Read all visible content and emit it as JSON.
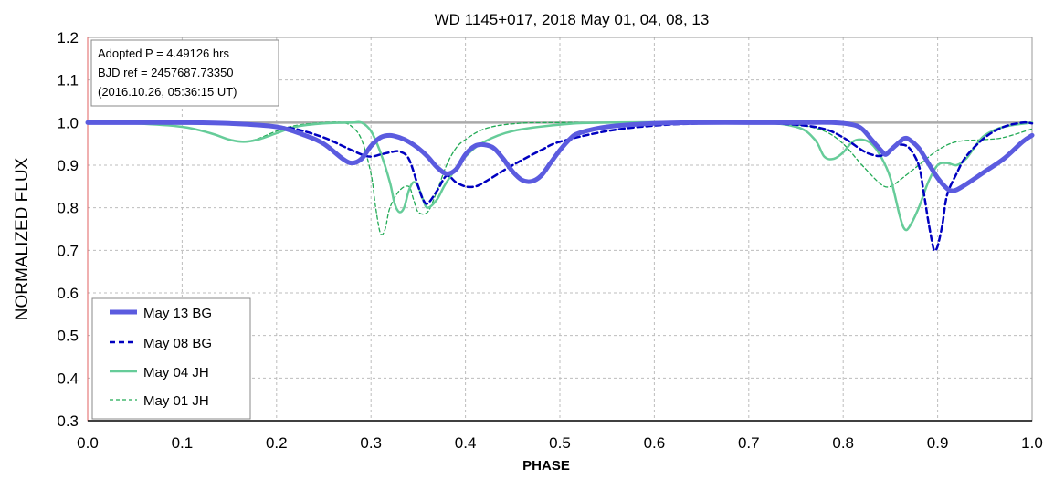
{
  "chart_data": {
    "type": "line",
    "title": "WD 1145+017, 2018 May 01, 04, 08, 13",
    "xlabel": "PHASE",
    "ylabel": "NORMALIZED FLUX",
    "xlim": [
      0.0,
      1.0
    ],
    "ylim": [
      0.3,
      1.2
    ],
    "x_ticks": [
      "0.0",
      "0.1",
      "0.2",
      "0.3",
      "0.4",
      "0.5",
      "0.6",
      "0.7",
      "0.8",
      "0.9",
      "1.0"
    ],
    "y_ticks": [
      "0.3",
      "0.4",
      "0.5",
      "0.6",
      "0.7",
      "0.8",
      "0.9",
      "1.0",
      "1.1",
      "1.2"
    ],
    "grid": true,
    "reference_line": 1.0,
    "legend_position": "bottom-left",
    "annotation": {
      "line1": "Adopted P = 4.49126 hrs",
      "line2": "BJD ref = 2457687.73350",
      "line3": "(2016.10.26, 05:36:15 UT)"
    },
    "series": [
      {
        "name": "May 13 BG",
        "color": "#5b5bdf",
        "style": "solid-thick",
        "points": [
          [
            0.0,
            1.0
          ],
          [
            0.05,
            1.0
          ],
          [
            0.1,
            1.0
          ],
          [
            0.15,
            0.998
          ],
          [
            0.2,
            0.99
          ],
          [
            0.23,
            0.97
          ],
          [
            0.25,
            0.95
          ],
          [
            0.27,
            0.915
          ],
          [
            0.28,
            0.905
          ],
          [
            0.29,
            0.915
          ],
          [
            0.3,
            0.945
          ],
          [
            0.31,
            0.965
          ],
          [
            0.32,
            0.97
          ],
          [
            0.33,
            0.965
          ],
          [
            0.34,
            0.955
          ],
          [
            0.35,
            0.94
          ],
          [
            0.36,
            0.92
          ],
          [
            0.37,
            0.895
          ],
          [
            0.38,
            0.88
          ],
          [
            0.39,
            0.89
          ],
          [
            0.4,
            0.925
          ],
          [
            0.41,
            0.945
          ],
          [
            0.42,
            0.948
          ],
          [
            0.43,
            0.94
          ],
          [
            0.44,
            0.915
          ],
          [
            0.45,
            0.885
          ],
          [
            0.46,
            0.865
          ],
          [
            0.47,
            0.862
          ],
          [
            0.48,
            0.875
          ],
          [
            0.49,
            0.905
          ],
          [
            0.5,
            0.935
          ],
          [
            0.51,
            0.96
          ],
          [
            0.52,
            0.975
          ],
          [
            0.55,
            0.99
          ],
          [
            0.6,
            0.998
          ],
          [
            0.65,
            1.0
          ],
          [
            0.7,
            1.0
          ],
          [
            0.75,
            1.0
          ],
          [
            0.79,
            1.0
          ],
          [
            0.81,
            0.995
          ],
          [
            0.82,
            0.985
          ],
          [
            0.83,
            0.96
          ],
          [
            0.84,
            0.935
          ],
          [
            0.845,
            0.925
          ],
          [
            0.85,
            0.935
          ],
          [
            0.86,
            0.955
          ],
          [
            0.865,
            0.963
          ],
          [
            0.87,
            0.96
          ],
          [
            0.88,
            0.94
          ],
          [
            0.89,
            0.905
          ],
          [
            0.9,
            0.87
          ],
          [
            0.91,
            0.845
          ],
          [
            0.915,
            0.84
          ],
          [
            0.92,
            0.842
          ],
          [
            0.93,
            0.855
          ],
          [
            0.95,
            0.885
          ],
          [
            0.97,
            0.915
          ],
          [
            0.99,
            0.955
          ],
          [
            1.0,
            0.97
          ]
        ]
      },
      {
        "name": "May 08 BG",
        "color": "#0000c0",
        "style": "dashed",
        "points": [
          [
            0.0,
            1.0
          ],
          [
            0.1,
            1.0
          ],
          [
            0.15,
            0.998
          ],
          [
            0.2,
            0.99
          ],
          [
            0.22,
            0.985
          ],
          [
            0.25,
            0.965
          ],
          [
            0.27,
            0.945
          ],
          [
            0.29,
            0.925
          ],
          [
            0.3,
            0.92
          ],
          [
            0.31,
            0.925
          ],
          [
            0.32,
            0.93
          ],
          [
            0.33,
            0.932
          ],
          [
            0.34,
            0.915
          ],
          [
            0.35,
            0.85
          ],
          [
            0.355,
            0.82
          ],
          [
            0.36,
            0.81
          ],
          [
            0.37,
            0.84
          ],
          [
            0.38,
            0.875
          ],
          [
            0.39,
            0.86
          ],
          [
            0.4,
            0.85
          ],
          [
            0.41,
            0.85
          ],
          [
            0.42,
            0.86
          ],
          [
            0.45,
            0.9
          ],
          [
            0.48,
            0.935
          ],
          [
            0.5,
            0.955
          ],
          [
            0.55,
            0.98
          ],
          [
            0.6,
            0.993
          ],
          [
            0.65,
            0.998
          ],
          [
            0.7,
            1.0
          ],
          [
            0.75,
            0.995
          ],
          [
            0.78,
            0.985
          ],
          [
            0.8,
            0.965
          ],
          [
            0.82,
            0.935
          ],
          [
            0.83,
            0.925
          ],
          [
            0.84,
            0.922
          ],
          [
            0.85,
            0.935
          ],
          [
            0.86,
            0.948
          ],
          [
            0.87,
            0.94
          ],
          [
            0.88,
            0.9
          ],
          [
            0.885,
            0.84
          ],
          [
            0.89,
            0.77
          ],
          [
            0.895,
            0.71
          ],
          [
            0.897,
            0.7
          ],
          [
            0.9,
            0.71
          ],
          [
            0.905,
            0.76
          ],
          [
            0.91,
            0.83
          ],
          [
            0.92,
            0.88
          ],
          [
            0.93,
            0.92
          ],
          [
            0.95,
            0.965
          ],
          [
            0.97,
            0.99
          ],
          [
            0.99,
            1.0
          ],
          [
            1.0,
            0.998
          ]
        ]
      },
      {
        "name": "May 04 JH",
        "color": "#66cc99",
        "style": "solid",
        "points": [
          [
            0.0,
            1.0
          ],
          [
            0.05,
            0.998
          ],
          [
            0.1,
            0.99
          ],
          [
            0.13,
            0.975
          ],
          [
            0.15,
            0.96
          ],
          [
            0.165,
            0.955
          ],
          [
            0.18,
            0.96
          ],
          [
            0.2,
            0.975
          ],
          [
            0.22,
            0.99
          ],
          [
            0.25,
            0.998
          ],
          [
            0.28,
            1.0
          ],
          [
            0.29,
            1.0
          ],
          [
            0.3,
            0.98
          ],
          [
            0.31,
            0.93
          ],
          [
            0.32,
            0.86
          ],
          [
            0.325,
            0.81
          ],
          [
            0.33,
            0.79
          ],
          [
            0.335,
            0.8
          ],
          [
            0.34,
            0.84
          ],
          [
            0.345,
            0.86
          ],
          [
            0.35,
            0.85
          ],
          [
            0.355,
            0.82
          ],
          [
            0.36,
            0.8
          ],
          [
            0.37,
            0.82
          ],
          [
            0.38,
            0.86
          ],
          [
            0.4,
            0.92
          ],
          [
            0.42,
            0.955
          ],
          [
            0.45,
            0.98
          ],
          [
            0.5,
            0.995
          ],
          [
            0.55,
            1.0
          ],
          [
            0.7,
            1.0
          ],
          [
            0.75,
            0.99
          ],
          [
            0.77,
            0.96
          ],
          [
            0.78,
            0.92
          ],
          [
            0.79,
            0.915
          ],
          [
            0.8,
            0.93
          ],
          [
            0.81,
            0.955
          ],
          [
            0.82,
            0.96
          ],
          [
            0.83,
            0.95
          ],
          [
            0.84,
            0.92
          ],
          [
            0.85,
            0.87
          ],
          [
            0.86,
            0.78
          ],
          [
            0.865,
            0.75
          ],
          [
            0.87,
            0.755
          ],
          [
            0.88,
            0.8
          ],
          [
            0.89,
            0.86
          ],
          [
            0.9,
            0.9
          ],
          [
            0.91,
            0.905
          ],
          [
            0.92,
            0.9
          ],
          [
            0.93,
            0.915
          ],
          [
            0.94,
            0.945
          ],
          [
            0.95,
            0.97
          ],
          [
            0.97,
            0.99
          ],
          [
            1.0,
            1.0
          ]
        ]
      },
      {
        "name": "May 01 JH",
        "color": "#22aa55",
        "style": "dashed-thin",
        "points": [
          [
            0.0,
            1.0
          ],
          [
            0.05,
            1.0
          ],
          [
            0.1,
            0.99
          ],
          [
            0.13,
            0.975
          ],
          [
            0.15,
            0.96
          ],
          [
            0.165,
            0.955
          ],
          [
            0.18,
            0.962
          ],
          [
            0.2,
            0.98
          ],
          [
            0.22,
            0.993
          ],
          [
            0.25,
            1.0
          ],
          [
            0.27,
            1.0
          ],
          [
            0.28,
            0.99
          ],
          [
            0.29,
            0.96
          ],
          [
            0.3,
            0.88
          ],
          [
            0.305,
            0.8
          ],
          [
            0.31,
            0.74
          ],
          [
            0.315,
            0.75
          ],
          [
            0.32,
            0.8
          ],
          [
            0.33,
            0.84
          ],
          [
            0.34,
            0.85
          ],
          [
            0.345,
            0.82
          ],
          [
            0.35,
            0.79
          ],
          [
            0.36,
            0.79
          ],
          [
            0.37,
            0.84
          ],
          [
            0.38,
            0.9
          ],
          [
            0.39,
            0.94
          ],
          [
            0.4,
            0.96
          ],
          [
            0.42,
            0.985
          ],
          [
            0.45,
            0.997
          ],
          [
            0.5,
            1.0
          ],
          [
            0.7,
            1.0
          ],
          [
            0.75,
            0.995
          ],
          [
            0.78,
            0.98
          ],
          [
            0.8,
            0.95
          ],
          [
            0.82,
            0.9
          ],
          [
            0.84,
            0.855
          ],
          [
            0.85,
            0.85
          ],
          [
            0.86,
            0.865
          ],
          [
            0.88,
            0.9
          ],
          [
            0.9,
            0.935
          ],
          [
            0.92,
            0.955
          ],
          [
            0.95,
            0.96
          ],
          [
            0.97,
            0.965
          ],
          [
            1.0,
            0.985
          ]
        ]
      }
    ]
  }
}
